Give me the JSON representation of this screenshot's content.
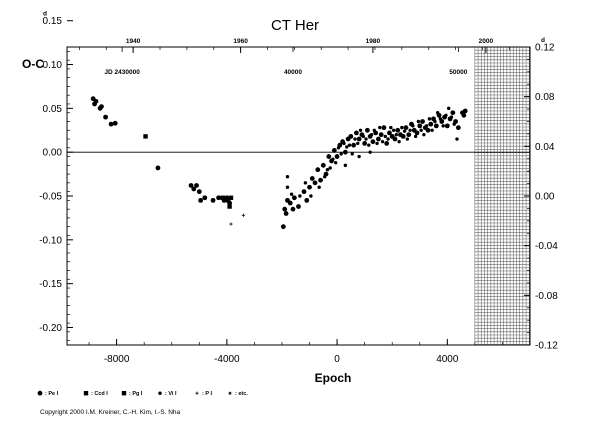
{
  "chart_data": {
    "type": "scatter",
    "title": "CT Her",
    "ylabel": "O-C",
    "xlabel": "Epoch",
    "xlim": [
      -9800,
      7000
    ],
    "ylim": [
      -0.22,
      0.12
    ],
    "left_ticks": [
      {
        "v": 0.15,
        "label": "0.15",
        "sup": "d"
      },
      {
        "v": 0.1,
        "label": "0.10"
      },
      {
        "v": 0.05,
        "label": "0.05"
      },
      {
        "v": 0.0,
        "label": "0.00"
      },
      {
        "v": -0.05,
        "label": "-0.05"
      },
      {
        "v": -0.1,
        "label": "-0.10"
      },
      {
        "v": -0.15,
        "label": "-0.15"
      },
      {
        "v": -0.2,
        "label": "-0.20"
      }
    ],
    "right_ticks": [
      {
        "v": 0.12,
        "label": "0.12",
        "sup": "d"
      },
      {
        "v": 0.08,
        "label": "0.08"
      },
      {
        "v": 0.04,
        "label": "0.04"
      },
      {
        "v": 0.0,
        "label": "0.00"
      },
      {
        "v": -0.04,
        "label": "-0.04"
      },
      {
        "v": -0.08,
        "label": "-0.08"
      },
      {
        "v": -0.12,
        "label": "-0.12"
      }
    ],
    "bottom_ticks": [
      {
        "v": -8000,
        "label": "-8000"
      },
      {
        "v": -4000,
        "label": "-4000"
      },
      {
        "v": 0,
        "label": "0"
      },
      {
        "v": 4000,
        "label": "4000"
      }
    ],
    "top_year_ticks": [
      {
        "v": -7400,
        "label": "1940"
      },
      {
        "v": -3500,
        "label": "1960"
      },
      {
        "v": 1300,
        "label": "1980"
      },
      {
        "v": 5400,
        "label": "2000"
      }
    ],
    "jd_labels": [
      {
        "v": -7800,
        "label": "JD 2430000"
      },
      {
        "v": -1600,
        "label": "40000"
      },
      {
        "v": 4400,
        "label": "50000"
      }
    ],
    "future_region": [
      5000,
      7000
    ],
    "series": [
      {
        "marker": "circle-large",
        "points": [
          [
            -8850,
            0.061
          ],
          [
            -8800,
            0.055
          ],
          [
            -8750,
            0.058
          ],
          [
            -8600,
            0.05
          ],
          [
            -8550,
            0.052
          ],
          [
            -8400,
            0.04
          ],
          [
            -8200,
            0.032
          ],
          [
            -8050,
            0.033
          ],
          [
            -6500,
            -0.018
          ],
          [
            -5300,
            -0.038
          ],
          [
            -5200,
            -0.042
          ],
          [
            -5100,
            -0.038
          ],
          [
            -5000,
            -0.045
          ],
          [
            -4950,
            -0.055
          ],
          [
            -4800,
            -0.052
          ],
          [
            -4500,
            -0.055
          ],
          [
            -4300,
            -0.052
          ],
          [
            -4100,
            -0.055
          ],
          [
            -4000,
            -0.052
          ],
          [
            -3900,
            -0.058
          ],
          [
            -1950,
            -0.085
          ],
          [
            -1900,
            -0.065
          ],
          [
            -1850,
            -0.07
          ],
          [
            -1800,
            -0.055
          ],
          [
            -1700,
            -0.058
          ],
          [
            -1600,
            -0.065
          ],
          [
            -1550,
            -0.052
          ],
          [
            -1400,
            -0.062
          ],
          [
            -1200,
            -0.045
          ],
          [
            -1100,
            -0.055
          ],
          [
            -1000,
            -0.04
          ],
          [
            -900,
            -0.03
          ],
          [
            -800,
            -0.035
          ],
          [
            -700,
            -0.02
          ],
          [
            -600,
            -0.032
          ],
          [
            -500,
            -0.015
          ],
          [
            -400,
            -0.025
          ],
          [
            -300,
            -0.005
          ],
          [
            -200,
            -0.01
          ],
          [
            -100,
            0.002
          ],
          [
            0,
            -0.005
          ],
          [
            100,
            0.008
          ],
          [
            200,
            0.012
          ],
          [
            300,
            0.0
          ],
          [
            400,
            0.015
          ],
          [
            500,
            0.018
          ],
          [
            600,
            0.008
          ],
          [
            700,
            0.022
          ],
          [
            800,
            0.015
          ],
          [
            900,
            0.02
          ],
          [
            1000,
            0.01
          ],
          [
            1100,
            0.025
          ],
          [
            1200,
            0.018
          ],
          [
            1300,
            0.012
          ],
          [
            1400,
            0.022
          ],
          [
            1500,
            0.015
          ],
          [
            1600,
            0.02
          ],
          [
            1700,
            0.028
          ],
          [
            1800,
            0.01
          ],
          [
            1900,
            0.022
          ],
          [
            2000,
            0.018
          ],
          [
            2100,
            0.015
          ],
          [
            2200,
            0.025
          ],
          [
            2300,
            0.02
          ],
          [
            2400,
            0.018
          ],
          [
            2500,
            0.028
          ],
          [
            2600,
            0.02
          ],
          [
            2700,
            0.032
          ],
          [
            2800,
            0.025
          ],
          [
            2900,
            0.022
          ],
          [
            3000,
            0.03
          ],
          [
            3100,
            0.035
          ],
          [
            3200,
            0.028
          ],
          [
            3300,
            0.025
          ],
          [
            3400,
            0.032
          ],
          [
            3500,
            0.038
          ],
          [
            3600,
            0.03
          ],
          [
            3700,
            0.042
          ],
          [
            3800,
            0.035
          ],
          [
            3900,
            0.04
          ],
          [
            4000,
            0.03
          ],
          [
            4100,
            0.038
          ],
          [
            4200,
            0.045
          ],
          [
            4300,
            0.035
          ],
          [
            4400,
            0.028
          ],
          [
            4550,
            0.045
          ],
          [
            4600,
            0.042
          ],
          [
            4650,
            0.047
          ]
        ]
      },
      {
        "marker": "circle-small",
        "points": [
          [
            -1800,
            -0.04
          ],
          [
            -1650,
            -0.048
          ],
          [
            -1350,
            -0.05
          ],
          [
            -1150,
            -0.035
          ],
          [
            -950,
            -0.05
          ],
          [
            -650,
            -0.04
          ],
          [
            -450,
            -0.028
          ],
          [
            -350,
            -0.02
          ],
          [
            -250,
            -0.018
          ],
          [
            -150,
            -0.008
          ],
          [
            -50,
            -0.012
          ],
          [
            50,
            0.005
          ],
          [
            150,
            -0.002
          ],
          [
            250,
            0.01
          ],
          [
            350,
            0.006
          ],
          [
            450,
            0.008
          ],
          [
            550,
            -0.002
          ],
          [
            650,
            0.015
          ],
          [
            750,
            0.01
          ],
          [
            850,
            0.025
          ],
          [
            950,
            0.018
          ],
          [
            1050,
            0.015
          ],
          [
            1150,
            0.008
          ],
          [
            1250,
            0.02
          ],
          [
            1350,
            0.025
          ],
          [
            1450,
            0.01
          ],
          [
            1550,
            0.028
          ],
          [
            1650,
            0.012
          ],
          [
            1750,
            0.018
          ],
          [
            1850,
            0.015
          ],
          [
            1950,
            0.028
          ],
          [
            2050,
            0.025
          ],
          [
            2150,
            0.02
          ],
          [
            2250,
            0.012
          ],
          [
            2350,
            0.028
          ],
          [
            2450,
            0.024
          ],
          [
            2550,
            0.015
          ],
          [
            2650,
            0.025
          ],
          [
            2750,
            0.03
          ],
          [
            2850,
            0.018
          ],
          [
            2950,
            0.035
          ],
          [
            3050,
            0.025
          ],
          [
            3150,
            0.02
          ],
          [
            3250,
            0.03
          ],
          [
            3350,
            0.038
          ],
          [
            3450,
            0.025
          ],
          [
            3550,
            0.035
          ],
          [
            3650,
            0.045
          ],
          [
            3750,
            0.038
          ],
          [
            3850,
            0.03
          ],
          [
            3950,
            0.042
          ],
          [
            4050,
            0.05
          ],
          [
            4150,
            0.04
          ],
          [
            4250,
            0.032
          ],
          [
            4350,
            0.015
          ],
          [
            -1800,
            -0.028
          ],
          [
            300,
            -0.015
          ],
          [
            800,
            -0.005
          ],
          [
            1200,
            0.0
          ]
        ]
      },
      {
        "marker": "square",
        "points": [
          [
            -6950,
            0.018
          ],
          [
            -4150,
            -0.052
          ],
          [
            -3950,
            -0.055
          ],
          [
            -3900,
            -0.062
          ],
          [
            -3850,
            -0.052
          ]
        ]
      },
      {
        "marker": "plus",
        "points": [
          [
            -3850,
            -0.082
          ],
          [
            -3400,
            -0.072
          ]
        ]
      }
    ]
  },
  "legend": {
    "items": [
      {
        "marker": "circle-large",
        "label": ": Pe I"
      },
      {
        "marker": "square",
        "label": ": Ccd I"
      },
      {
        "marker": "square",
        "label": ": Pg I"
      },
      {
        "marker": "circle-small",
        "label": ": Vi I"
      },
      {
        "marker": "plus",
        "label": ": P I"
      },
      {
        "marker": "star",
        "label": ": etc."
      }
    ]
  },
  "footer": {
    "copyright": "Copyright 2000 I.M. Kreiner, C.-H. Kim, I.-S. Nha"
  }
}
